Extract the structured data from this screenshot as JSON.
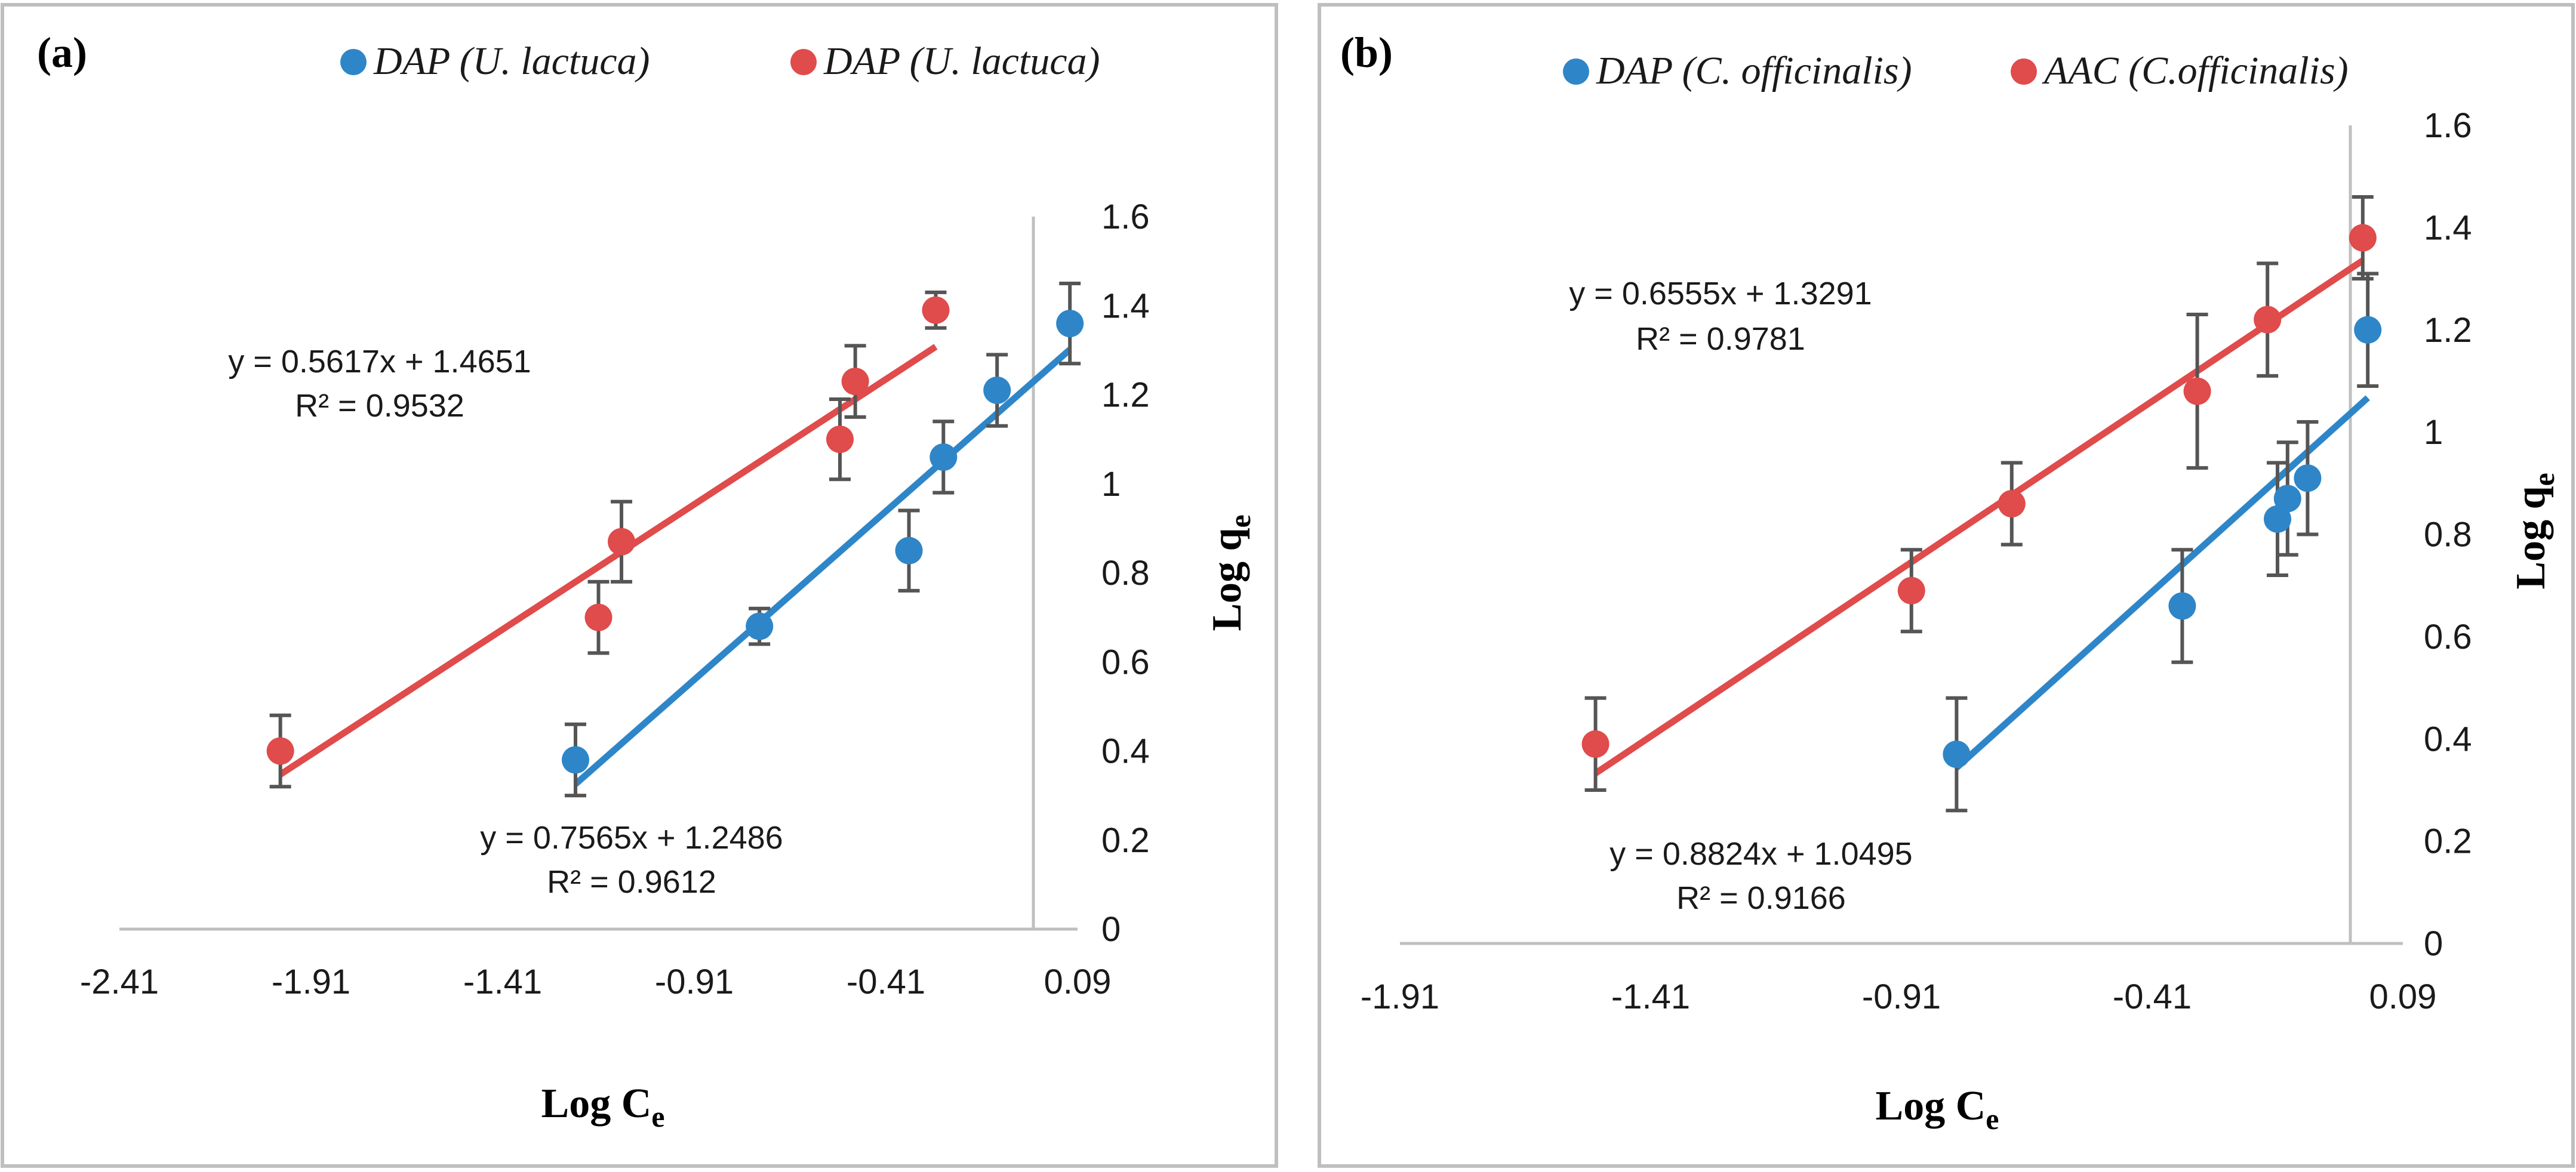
{
  "chart_data": [
    {
      "type": "scatter",
      "panel_label": "(a)",
      "xlabel": "Log C",
      "xlabel_sub": "e",
      "ylabel": "Log q",
      "ylabel_sub": "e",
      "xlim": [
        -2.41,
        0.09
      ],
      "ylim": [
        0,
        1.6
      ],
      "xticks": [
        -2.41,
        -1.91,
        -1.41,
        -0.91,
        -0.41,
        0.09
      ],
      "xtick_labels": [
        "-2.41",
        "-1.91",
        "-1.41",
        "-0.91",
        "-0.41",
        "0.09"
      ],
      "yticks": [
        0,
        0.2,
        0.4,
        0.6,
        0.8,
        1,
        1.2,
        1.4,
        1.6
      ],
      "ytick_labels": [
        "0",
        "0.2",
        "0.4",
        "0.6",
        "0.8",
        "1",
        "1.2",
        "1.4",
        "1.6"
      ],
      "y_axis_position_x": 0,
      "grid": false,
      "legend": "top",
      "series": [
        {
          "name": "DAP (U. lactuca)",
          "color": "#2E86C8",
          "x": [
            -1.22,
            -0.74,
            -0.35,
            -0.26,
            -0.12,
            0.07
          ],
          "y": [
            0.38,
            0.68,
            0.85,
            1.06,
            1.21,
            1.36
          ],
          "err": [
            0.08,
            0.04,
            0.09,
            0.08,
            0.08,
            0.09
          ],
          "fit": {
            "slope": 0.7565,
            "intercept": 1.2486,
            "x_range": [
              -1.22,
              0.07
            ]
          },
          "equation": "y = 0.7565x + 1.2486",
          "r2": "R² = 0.9612"
        },
        {
          "name": "DAP (U. lactuca)",
          "color": "#E04B4B",
          "x": [
            -1.99,
            -1.16,
            -1.1,
            -0.53,
            -0.49,
            -0.28
          ],
          "y": [
            0.4,
            0.7,
            0.87,
            1.1,
            1.23,
            1.39
          ],
          "err": [
            0.08,
            0.08,
            0.09,
            0.09,
            0.08,
            0.04
          ],
          "fit": {
            "slope": 0.5617,
            "intercept": 1.4651,
            "x_range": [
              -1.99,
              -0.28
            ]
          },
          "equation": "y = 0.5617x + 1.4651",
          "r2": "R² = 0.9532"
        }
      ]
    },
    {
      "type": "scatter",
      "panel_label": "(b)",
      "xlabel": "Log C",
      "xlabel_sub": "e",
      "ylabel": "Log q",
      "ylabel_sub": "e",
      "xlim": [
        -1.91,
        0.09
      ],
      "ylim": [
        0,
        1.6
      ],
      "xticks": [
        -1.91,
        -1.41,
        -0.91,
        -0.41,
        0.09
      ],
      "xtick_labels": [
        "-1.91",
        "-1.41",
        "-0.91",
        "-0.41",
        "0.09"
      ],
      "yticks": [
        0,
        0.2,
        0.4,
        0.6,
        0.8,
        1,
        1.2,
        1.4,
        1.6
      ],
      "ytick_labels": [
        "0",
        "0.2",
        "0.4",
        "0.6",
        "0.8",
        "1",
        "1.2",
        "1.4",
        "1.6"
      ],
      "y_axis_position_x": 0,
      "grid": false,
      "legend": "top",
      "series": [
        {
          "name": "DAP (C. officinalis)",
          "color": "#2E86C8",
          "x": [
            -0.8,
            -0.35,
            -0.16,
            -0.14,
            -0.1,
            0.02
          ],
          "y": [
            0.37,
            0.66,
            0.83,
            0.87,
            0.91,
            1.2
          ],
          "err": [
            0.11,
            0.11,
            0.11,
            0.11,
            0.11,
            0.11
          ],
          "fit": {
            "slope": 0.8824,
            "intercept": 1.0495,
            "x_range": [
              -0.8,
              0.02
            ]
          },
          "equation": "y = 0.8824x + 1.0495",
          "r2": "R² = 0.9166"
        },
        {
          "name": "AAC (C.officinalis)",
          "color": "#E04B4B",
          "x": [
            -1.52,
            -0.89,
            -0.69,
            -0.32,
            -0.18,
            0.01
          ],
          "y": [
            0.39,
            0.69,
            0.86,
            1.08,
            1.22,
            1.38
          ],
          "err": [
            0.09,
            0.08,
            0.08,
            0.15,
            0.11,
            0.08
          ],
          "fit": {
            "slope": 0.6555,
            "intercept": 1.3291,
            "x_range": [
              -1.52,
              0.01
            ]
          },
          "equation": "y = 0.6555x + 1.3291",
          "r2": "R² = 0.9781"
        }
      ]
    }
  ]
}
